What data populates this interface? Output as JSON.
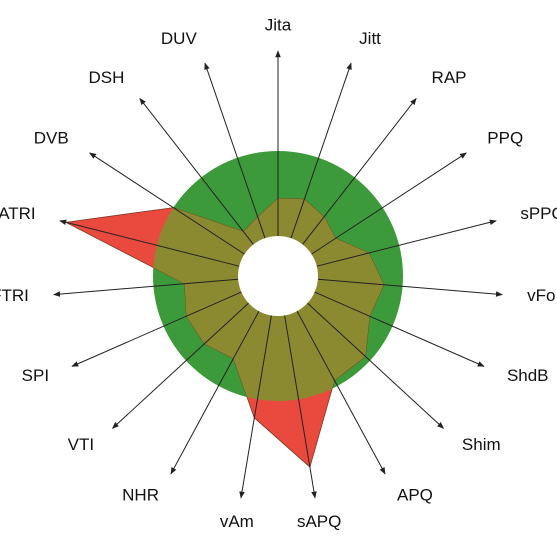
{
  "chart_data": {
    "type": "radar",
    "categories": [
      "Jita",
      "Jitt",
      "RAP",
      "PPQ",
      "sPPQ",
      "vFo",
      "ShdB",
      "Shim",
      "APQ",
      "sAPQ",
      "vAm",
      "NHR",
      "VTI",
      "SPI",
      "FTRI",
      "ATRI",
      "DVB",
      "DSH",
      "DUV"
    ],
    "values": [
      0.62,
      0.65,
      0.6,
      0.55,
      0.75,
      0.85,
      0.8,
      0.95,
      0.95,
      1.55,
      1.15,
      0.75,
      0.8,
      0.8,
      0.75,
      1.75,
      1.0,
      0.45,
      0.5
    ],
    "rlim": [
      0,
      1.8
    ],
    "threshold": 1,
    "color": "#8c8a30",
    "threshold_color": "#3d9a3a",
    "over_color": "#ea4a3e"
  }
}
